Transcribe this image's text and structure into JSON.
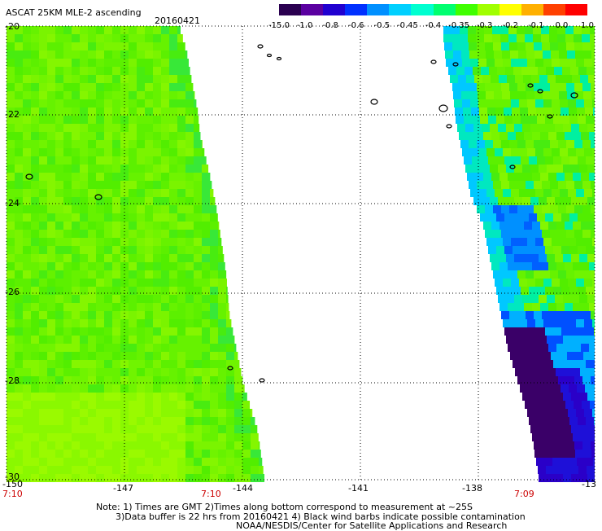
{
  "header": {
    "title": "ASCAT 25KM MLE-2 ascending",
    "date": "20160421"
  },
  "colorbar": {
    "labels": [
      "-15.0",
      "-1.0",
      "-0.8",
      "-0.6",
      "-0.5",
      "-0.45",
      "-0.4",
      "-0.35",
      "-0.3",
      "-0.2",
      "-0.1",
      "0.0",
      "1.0"
    ],
    "colors": [
      "#2a0050",
      "#5a00a0",
      "#2000d0",
      "#0030ff",
      "#0090ff",
      "#00d0ff",
      "#00ffd0",
      "#00ff70",
      "#40ff00",
      "#a0ff00",
      "#ffff00",
      "#ffb000",
      "#ff4000",
      "#ff0000"
    ]
  },
  "axes": {
    "lat_labels": [
      "-20",
      "-22",
      "-24",
      "-26",
      "-28",
      "-30"
    ],
    "lon_labels": [
      "-150",
      "-147",
      "-144",
      "-141",
      "-138",
      "-13"
    ],
    "time_labels": [
      "7:10",
      "7:10",
      "7:09"
    ]
  },
  "notes": {
    "line1": "Note: 1) Times are GMT 2)Times along bottom correspond to measurement at ~25S",
    "line2": "3)Data buffer is 22 hrs from 20160421 4) Black wind barbs indicate possible contamination",
    "line3": "NOAA/NESDIS/Center for Satellite Applications and Research"
  }
}
